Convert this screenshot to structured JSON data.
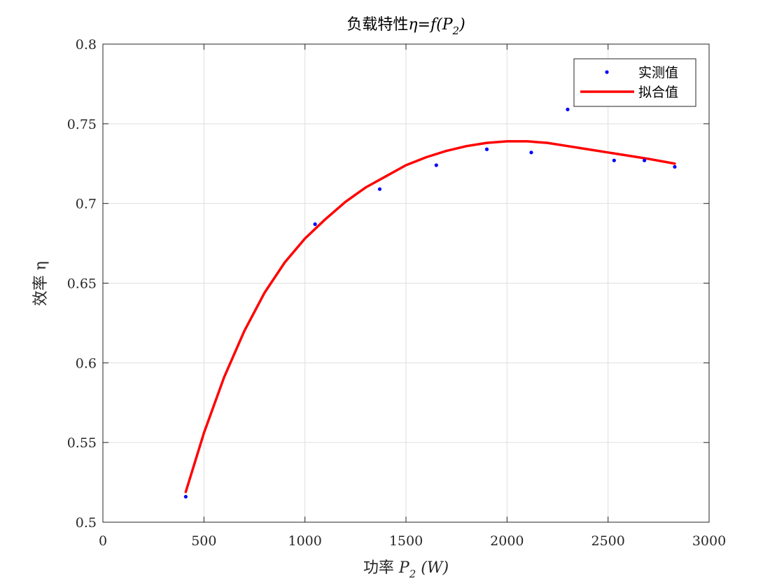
{
  "chart_data": {
    "type": "scatter",
    "title": "负载特性η=f(P2)",
    "title_parts": {
      "prefix": "负载特性",
      "eta": "η",
      "eq": "=",
      "f": "f",
      "lparen": "(",
      "P": "P",
      "sub": "2",
      "rparen": ")"
    },
    "xlabel": "功率 P2 (W)",
    "xlabel_parts": {
      "prefix": "功率 ",
      "P": "P",
      "sub": "2",
      "unit": " (W)"
    },
    "ylabel": "效率 η",
    "xlim": [
      0,
      3000
    ],
    "ylim": [
      0.5,
      0.8
    ],
    "x_ticks": [
      0,
      500,
      1000,
      1500,
      2000,
      2500,
      3000
    ],
    "x_tick_labels": [
      "0",
      "500",
      "1000",
      "1500",
      "2000",
      "2500",
      "3000"
    ],
    "y_ticks": [
      0.5,
      0.55,
      0.6,
      0.65,
      0.7,
      0.75,
      0.8
    ],
    "y_tick_labels": [
      "0.5",
      "0.55",
      "0.6",
      "0.65",
      "0.7",
      "0.75",
      "0.8"
    ],
    "grid": true,
    "legend_position": "top-right",
    "series": [
      {
        "name": "实测值",
        "kind": "scatter",
        "color": "#0000ff",
        "x": [
          410,
          1050,
          1370,
          1650,
          1900,
          2120,
          2300,
          2530,
          2680,
          2830
        ],
        "y": [
          0.516,
          0.687,
          0.709,
          0.724,
          0.734,
          0.732,
          0.759,
          0.727,
          0.727,
          0.723
        ]
      },
      {
        "name": "拟合值",
        "kind": "line",
        "color": "#ff0000",
        "x": [
          410,
          500,
          600,
          700,
          800,
          900,
          1000,
          1100,
          1200,
          1300,
          1400,
          1500,
          1600,
          1700,
          1800,
          1900,
          2000,
          2100,
          2200,
          2300,
          2400,
          2500,
          2600,
          2700,
          2830
        ],
        "y": [
          0.519,
          0.556,
          0.591,
          0.62,
          0.644,
          0.663,
          0.678,
          0.69,
          0.701,
          0.71,
          0.717,
          0.724,
          0.729,
          0.733,
          0.736,
          0.738,
          0.739,
          0.739,
          0.738,
          0.736,
          0.734,
          0.732,
          0.73,
          0.728,
          0.725
        ]
      }
    ]
  }
}
